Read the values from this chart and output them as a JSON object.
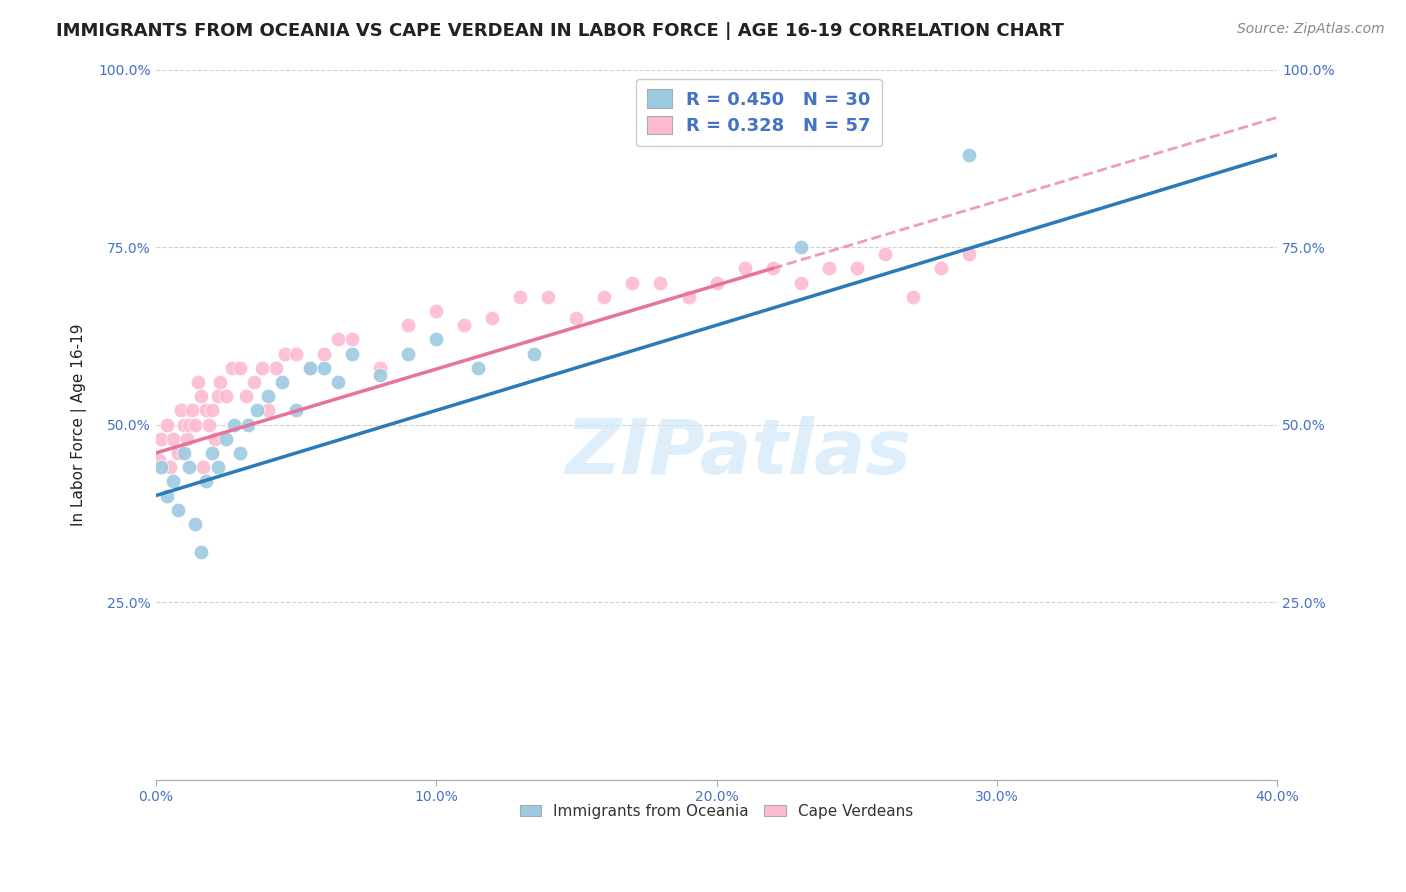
{
  "title": "IMMIGRANTS FROM OCEANIA VS CAPE VERDEAN IN LABOR FORCE | AGE 16-19 CORRELATION CHART",
  "source": "Source: ZipAtlas.com",
  "ylabel": "In Labor Force | Age 16-19",
  "xlim": [
    0.0,
    0.4
  ],
  "ylim": [
    0.0,
    1.0
  ],
  "xticks": [
    0.0,
    0.1,
    0.2,
    0.3,
    0.4
  ],
  "xtick_labels": [
    "0.0%",
    "10.0%",
    "20.0%",
    "30.0%",
    "40.0%"
  ],
  "ytick_positions": [
    0.0,
    0.25,
    0.5,
    0.75,
    1.0
  ],
  "ytick_labels": [
    "",
    "25.0%",
    "50.0%",
    "75.0%",
    "100.0%"
  ],
  "ytick_right_labels": [
    "",
    "25.0%",
    "50.0%",
    "75.0%",
    "100.0%"
  ],
  "blue_R": 0.45,
  "blue_N": 30,
  "pink_R": 0.328,
  "pink_N": 57,
  "blue_color": "#9ecae1",
  "pink_color": "#fcbad3",
  "blue_line_color": "#2b7bba",
  "pink_line_color": "#e8739a",
  "watermark": "ZIPatlas",
  "legend_label_blue": "Immigrants from Oceania",
  "legend_label_pink": "Cape Verdeans",
  "blue_x": [
    0.002,
    0.004,
    0.006,
    0.008,
    0.01,
    0.012,
    0.014,
    0.016,
    0.018,
    0.02,
    0.022,
    0.025,
    0.028,
    0.03,
    0.033,
    0.036,
    0.04,
    0.045,
    0.05,
    0.055,
    0.06,
    0.065,
    0.07,
    0.08,
    0.09,
    0.1,
    0.115,
    0.135,
    0.23,
    0.29
  ],
  "blue_y": [
    0.44,
    0.4,
    0.42,
    0.38,
    0.46,
    0.44,
    0.36,
    0.32,
    0.42,
    0.46,
    0.44,
    0.48,
    0.5,
    0.46,
    0.5,
    0.52,
    0.54,
    0.56,
    0.52,
    0.58,
    0.58,
    0.56,
    0.6,
    0.57,
    0.6,
    0.62,
    0.58,
    0.6,
    0.75,
    0.88
  ],
  "pink_x": [
    0.001,
    0.002,
    0.004,
    0.005,
    0.006,
    0.008,
    0.009,
    0.01,
    0.011,
    0.012,
    0.013,
    0.014,
    0.015,
    0.016,
    0.017,
    0.018,
    0.019,
    0.02,
    0.021,
    0.022,
    0.023,
    0.025,
    0.027,
    0.03,
    0.032,
    0.035,
    0.038,
    0.04,
    0.043,
    0.046,
    0.05,
    0.055,
    0.06,
    0.065,
    0.07,
    0.08,
    0.09,
    0.1,
    0.11,
    0.12,
    0.13,
    0.14,
    0.15,
    0.16,
    0.17,
    0.18,
    0.19,
    0.2,
    0.21,
    0.22,
    0.23,
    0.24,
    0.25,
    0.26,
    0.27,
    0.28,
    0.29
  ],
  "pink_y": [
    0.45,
    0.48,
    0.5,
    0.44,
    0.48,
    0.46,
    0.52,
    0.5,
    0.48,
    0.5,
    0.52,
    0.5,
    0.56,
    0.54,
    0.44,
    0.52,
    0.5,
    0.52,
    0.48,
    0.54,
    0.56,
    0.54,
    0.58,
    0.58,
    0.54,
    0.56,
    0.58,
    0.52,
    0.58,
    0.6,
    0.6,
    0.58,
    0.6,
    0.62,
    0.62,
    0.58,
    0.64,
    0.66,
    0.64,
    0.65,
    0.68,
    0.68,
    0.65,
    0.68,
    0.7,
    0.7,
    0.68,
    0.7,
    0.72,
    0.72,
    0.7,
    0.72,
    0.72,
    0.74,
    0.68,
    0.72,
    0.74
  ],
  "background_color": "#ffffff",
  "grid_color": "#cccccc",
  "title_color": "#222222",
  "axis_color": "#4472C4",
  "title_fontsize": 13,
  "label_fontsize": 11,
  "tick_fontsize": 10,
  "source_fontsize": 10
}
